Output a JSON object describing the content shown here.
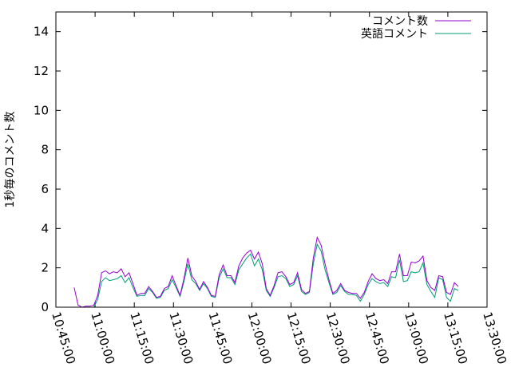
{
  "chart_data": {
    "type": "line",
    "title": "",
    "xlabel": "",
    "ylabel": "1秒毎のコメント数",
    "ylim": [
      0,
      15
    ],
    "xlim": [
      "10:45:00",
      "13:30:00"
    ],
    "yticks": [
      "0",
      "2",
      "4",
      "6",
      "8",
      "10",
      "12",
      "14"
    ],
    "xticks": [
      "10:45:00",
      "11:00:00",
      "11:15:00",
      "11:30:00",
      "11:45:00",
      "12:00:00",
      "12:15:00",
      "12:30:00",
      "12:45:00",
      "13:00:00",
      "13:15:00",
      "13:30:00"
    ],
    "grid": false,
    "legend_position": "top-right",
    "x_step": "00:01:30",
    "x_start": "10:52:00",
    "series": [
      {
        "name": "コメント数",
        "color": "#9400d3",
        "values": [
          1.0,
          0.1,
          0.0,
          0.05,
          0.05,
          0.1,
          0.6,
          1.75,
          1.85,
          1.7,
          1.8,
          1.75,
          1.95,
          1.55,
          1.75,
          1.2,
          0.6,
          0.7,
          0.7,
          1.05,
          0.8,
          0.5,
          0.55,
          0.95,
          1.05,
          1.6,
          1.1,
          0.6,
          1.45,
          2.5,
          1.6,
          1.3,
          0.9,
          1.3,
          1.0,
          0.6,
          0.55,
          1.65,
          2.15,
          1.6,
          1.6,
          1.25,
          2.1,
          2.5,
          2.75,
          2.9,
          2.45,
          2.8,
          2.2,
          0.95,
          0.6,
          1.1,
          1.75,
          1.8,
          1.55,
          1.15,
          1.25,
          1.75,
          0.9,
          0.7,
          0.8,
          2.5,
          3.55,
          3.15,
          2.2,
          1.4,
          0.7,
          0.85,
          1.2,
          0.85,
          0.75,
          0.7,
          0.7,
          0.45,
          0.75,
          1.3,
          1.7,
          1.45,
          1.35,
          1.4,
          1.2,
          1.8,
          1.8,
          2.7,
          1.6,
          1.6,
          2.3,
          2.25,
          2.35,
          2.6,
          1.35,
          1.0,
          0.85,
          1.6,
          1.55,
          0.75,
          0.65,
          1.25,
          1.05
        ]
      },
      {
        "name": "英語コメント",
        "color": "#009e73",
        "values": [
          0.0,
          0.0,
          0.0,
          0.0,
          0.0,
          0.0,
          0.4,
          1.3,
          1.5,
          1.35,
          1.4,
          1.45,
          1.6,
          1.25,
          1.5,
          1.0,
          0.55,
          0.6,
          0.6,
          0.95,
          0.75,
          0.45,
          0.5,
          0.85,
          0.95,
          1.4,
          1.0,
          0.55,
          1.3,
          2.2,
          1.4,
          1.2,
          0.85,
          1.2,
          0.95,
          0.55,
          0.5,
          1.5,
          1.95,
          1.5,
          1.5,
          1.15,
          1.9,
          2.2,
          2.5,
          2.7,
          2.1,
          2.45,
          1.9,
          0.85,
          0.55,
          1.0,
          1.55,
          1.6,
          1.45,
          1.05,
          1.15,
          1.6,
          0.8,
          0.65,
          0.75,
          2.2,
          3.2,
          2.85,
          1.9,
          1.25,
          0.65,
          0.75,
          1.1,
          0.8,
          0.65,
          0.65,
          0.6,
          0.3,
          0.65,
          1.15,
          1.45,
          1.3,
          1.2,
          1.25,
          1.05,
          1.55,
          1.5,
          2.4,
          1.3,
          1.35,
          1.8,
          1.75,
          1.8,
          2.25,
          1.15,
          0.8,
          0.5,
          1.5,
          1.4,
          0.5,
          0.3,
          0.95,
          0.85
        ]
      }
    ]
  }
}
